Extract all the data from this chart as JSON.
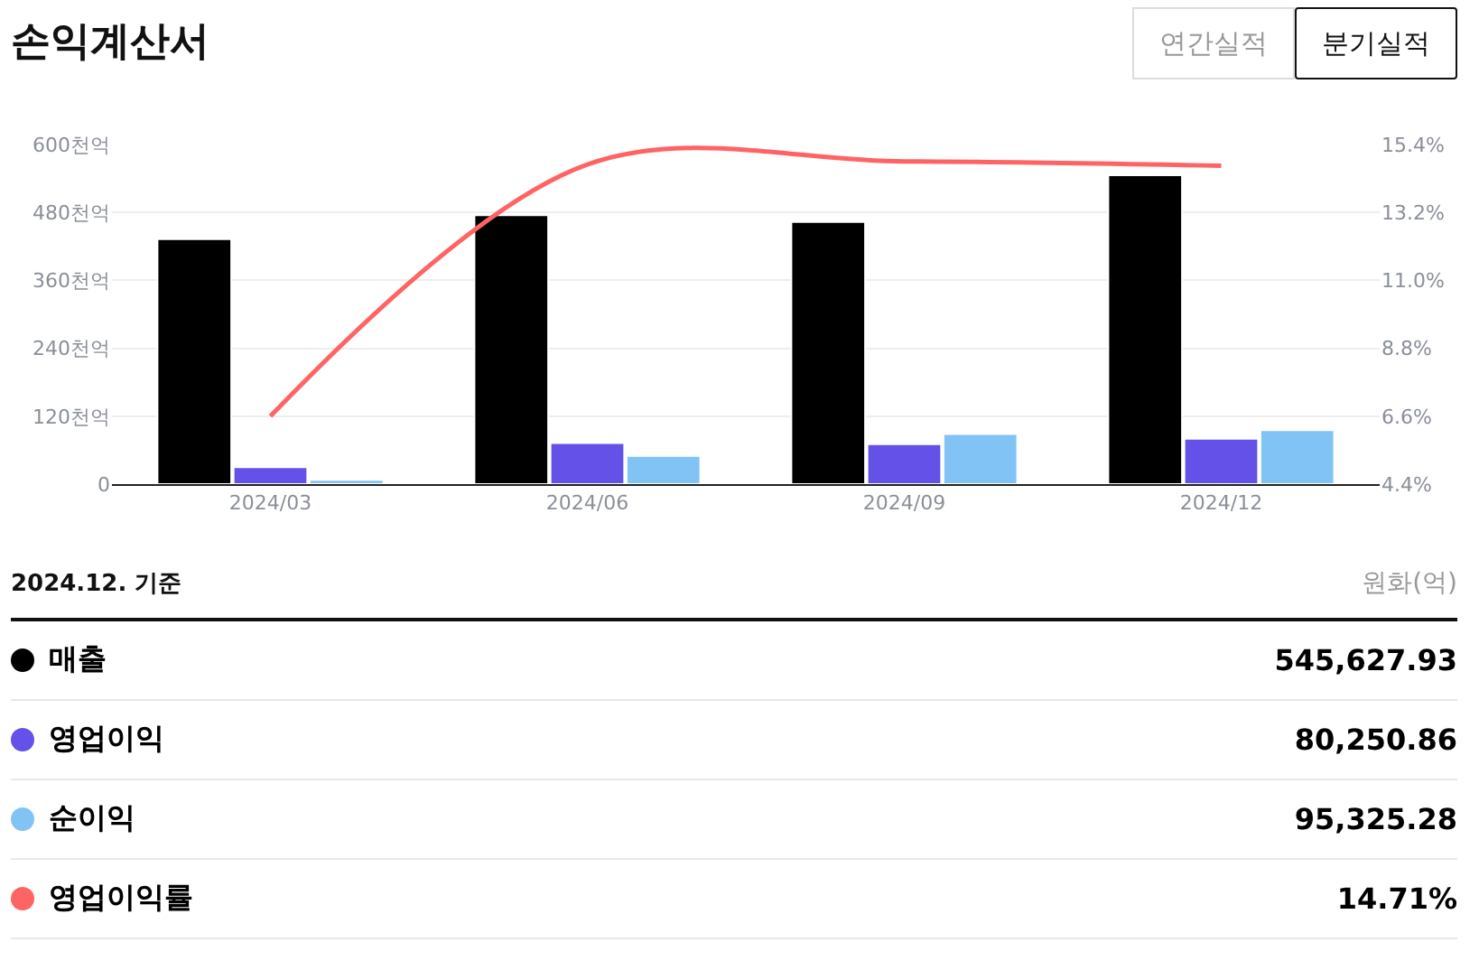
{
  "chart_data": {
    "type": "bar",
    "title": "손익계산서",
    "categories": [
      "2024/03",
      "2024/06",
      "2024/09",
      "2024/12"
    ],
    "series": [
      {
        "name": "매출",
        "color": "#000000",
        "values": [
          433,
          475,
          463,
          545.6
        ]
      },
      {
        "name": "영업이익",
        "color": "#6351e8",
        "values": [
          30,
          72.6,
          70.5,
          80.3
        ]
      },
      {
        "name": "순이익",
        "color": "#82c3f5",
        "values": [
          7.5,
          50,
          88.6,
          95.3
        ]
      },
      {
        "name": "영업이익률",
        "color": "#ff6464",
        "type": "line",
        "axis": "y2",
        "values": [
          6.6,
          14.75,
          14.85,
          14.71
        ]
      }
    ],
    "ylim": [
      0,
      600
    ],
    "yticks": [
      0,
      {
        "value": 120,
        "label": "120천억"
      },
      {
        "value": 240,
        "label": "240천억"
      },
      {
        "value": 360,
        "label": "360천억"
      },
      {
        "value": 480,
        "label": "480천억"
      },
      {
        "value": 600,
        "label": "600천억"
      }
    ],
    "y2lim": [
      4.4,
      15.4
    ],
    "y2ticks": [
      {
        "value": 4.4,
        "label": "4.4%"
      },
      {
        "value": 6.6,
        "label": "6.6%"
      },
      {
        "value": 8.8,
        "label": "8.8%"
      },
      {
        "value": 11,
        "label": "11.0%"
      },
      {
        "value": 13.2,
        "label": "13.2%"
      },
      {
        "value": 15.4,
        "label": "15.4%"
      }
    ],
    "grid": "y",
    "legend": "bottom",
    "marker": "none",
    "line_style": "solid",
    "annotations": [
      "연간실적",
      "분기실적",
      "2024.12. 기준",
      "원화(억)",
      "545,627.93",
      "80,250.86",
      "95,325.28",
      "14.71%"
    ]
  }
}
